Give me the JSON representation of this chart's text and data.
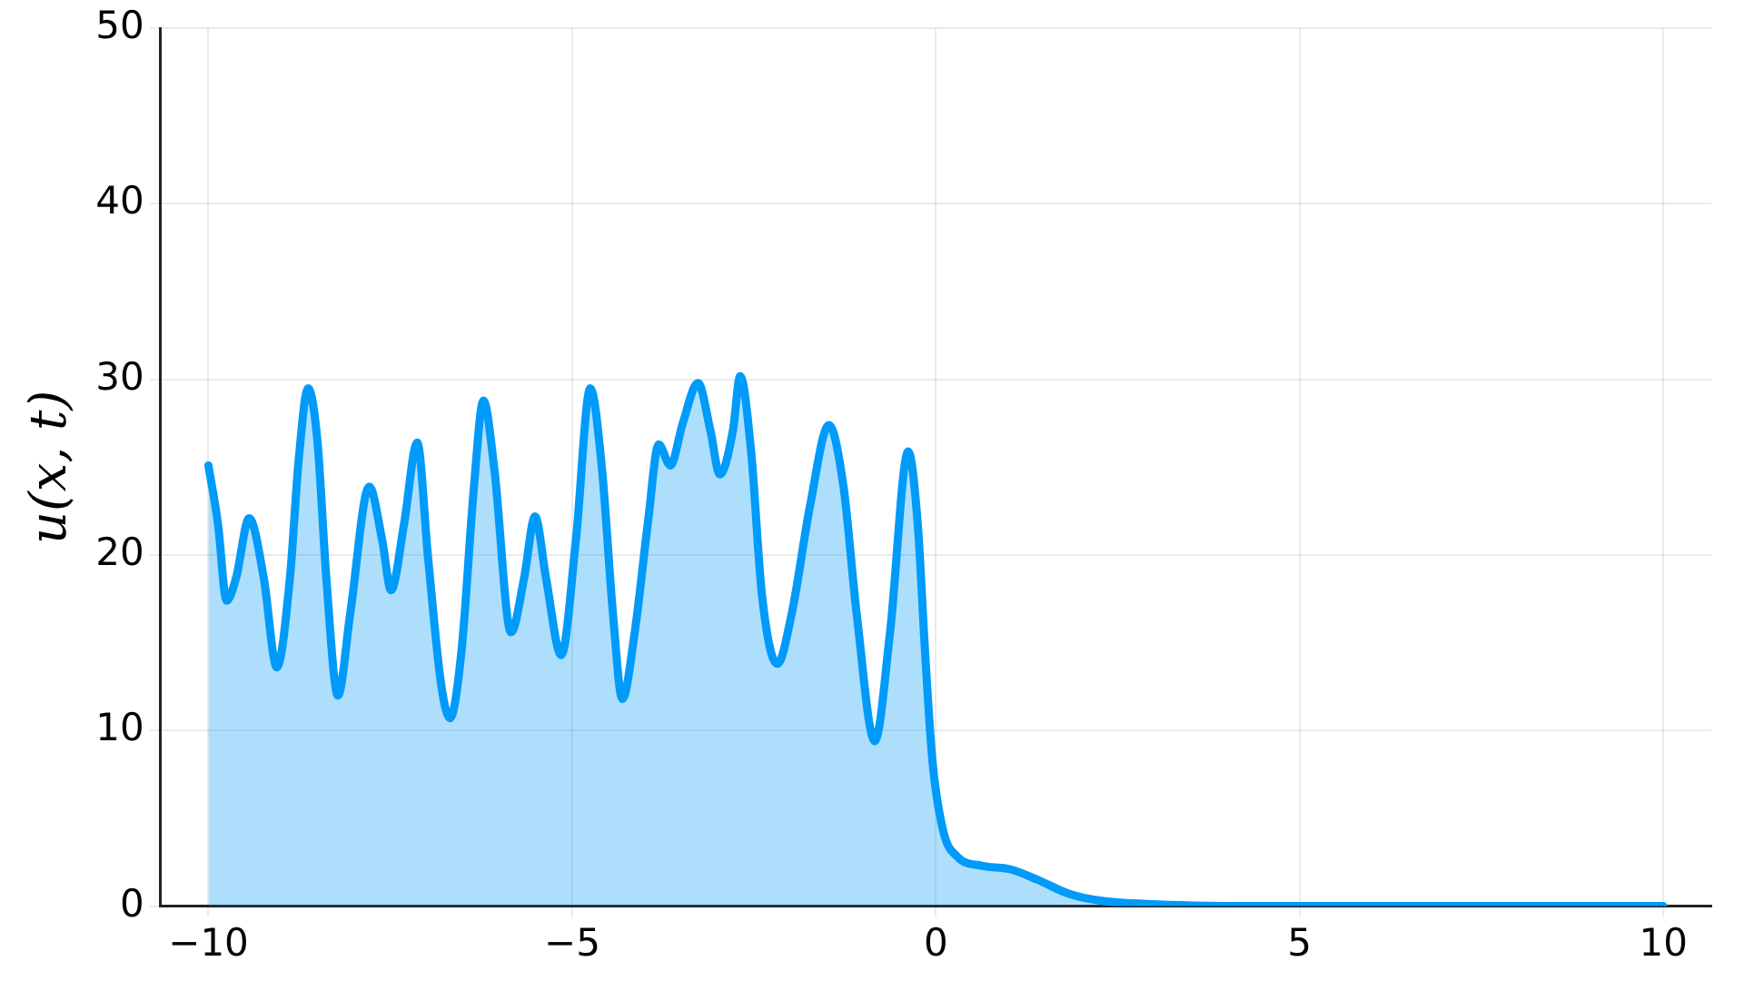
{
  "chart_data": {
    "type": "area",
    "ylabel": "u(x, t)",
    "series": [
      {
        "color": "#009af9",
        "x": [
          -10,
          -9.87,
          -9.75,
          -9.62,
          -9.44,
          -9.24,
          -9.06,
          -8.88,
          -8.76,
          -8.63,
          -8.5,
          -8.38,
          -8.22,
          -8.05,
          -7.79,
          -7.61,
          -7.49,
          -7.31,
          -7.13,
          -6.98,
          -6.8,
          -6.68,
          -6.52,
          -6.35,
          -6.22,
          -6.07,
          -5.84,
          -5.66,
          -5.51,
          -5.36,
          -5.15,
          -4.95,
          -4.75,
          -4.59,
          -4.44,
          -4.31,
          -4.14,
          -3.96,
          -3.81,
          -3.65,
          -3.48,
          -3.27,
          -3.1,
          -2.97,
          -2.79,
          -2.69,
          -2.54,
          -2.39,
          -2.18,
          -1.98,
          -1.73,
          -1.47,
          -1.27,
          -1.09,
          -0.84,
          -0.63,
          -0.38,
          -0.25,
          -0.15,
          -0.05,
          0.1,
          0.3,
          0.63,
          1.02,
          1.4,
          1.83,
          2.28,
          3.05,
          4.57,
          10
        ],
        "values": [
          25.1,
          21.8,
          17.4,
          18.7,
          22.1,
          18.7,
          13.6,
          18.7,
          25.4,
          29.5,
          26.4,
          18.7,
          12.0,
          16.7,
          23.9,
          20.8,
          18.0,
          21.8,
          26.4,
          19.8,
          12.6,
          10.7,
          14.6,
          23.9,
          28.8,
          24.9,
          15.6,
          18.7,
          22.2,
          18.7,
          14.3,
          20.8,
          29.5,
          24.9,
          16.7,
          11.8,
          15.6,
          21.8,
          26.3,
          25.1,
          27.5,
          29.8,
          27.1,
          24.6,
          27.1,
          30.2,
          25.9,
          17.7,
          13.8,
          16.7,
          22.8,
          27.4,
          23.9,
          16.7,
          9.4,
          15.6,
          25.9,
          21.8,
          14.6,
          8.4,
          4.3,
          2.8,
          2.3,
          2.1,
          1.5,
          0.7,
          0.3,
          0.1,
          0,
          0
        ]
      }
    ],
    "xlim": [
      -10.66,
      10.66
    ],
    "xticks": [
      {
        "value": -10,
        "label": "−10"
      },
      {
        "value": -5,
        "label": "−5"
      },
      0,
      5,
      10
    ],
    "ylim": [
      0,
      50
    ],
    "yticks": [
      0,
      10,
      20,
      30,
      40,
      50
    ],
    "grid": true,
    "legend": false,
    "marker": "none",
    "line_style": "solid"
  }
}
